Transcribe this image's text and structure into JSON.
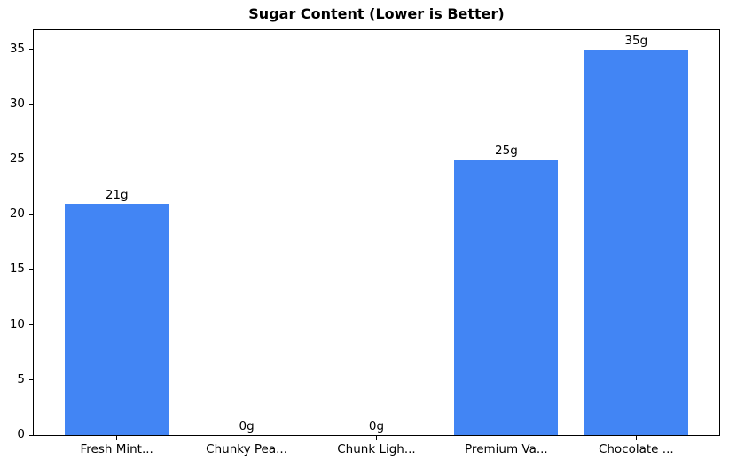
{
  "chart_data": {
    "type": "bar",
    "title": "Sugar Content (Lower is Better)",
    "categories": [
      "Fresh Mint...",
      "Chunky Pea...",
      "Chunk Ligh...",
      "Premium Va...",
      "Chocolate ..."
    ],
    "values": [
      21,
      0,
      0,
      25,
      35
    ],
    "bar_labels": [
      "21g",
      "0g",
      "0g",
      "25g",
      "35g"
    ],
    "yticks": [
      0,
      5,
      10,
      15,
      20,
      25,
      30,
      35
    ],
    "ylim": [
      0,
      36.75
    ],
    "xlabel": "",
    "ylabel": "",
    "grid": false,
    "legend": "none",
    "bar_color": "#4285f4",
    "axis_color": "#000000",
    "background_color": "#ffffff",
    "text_color": "#000000"
  }
}
